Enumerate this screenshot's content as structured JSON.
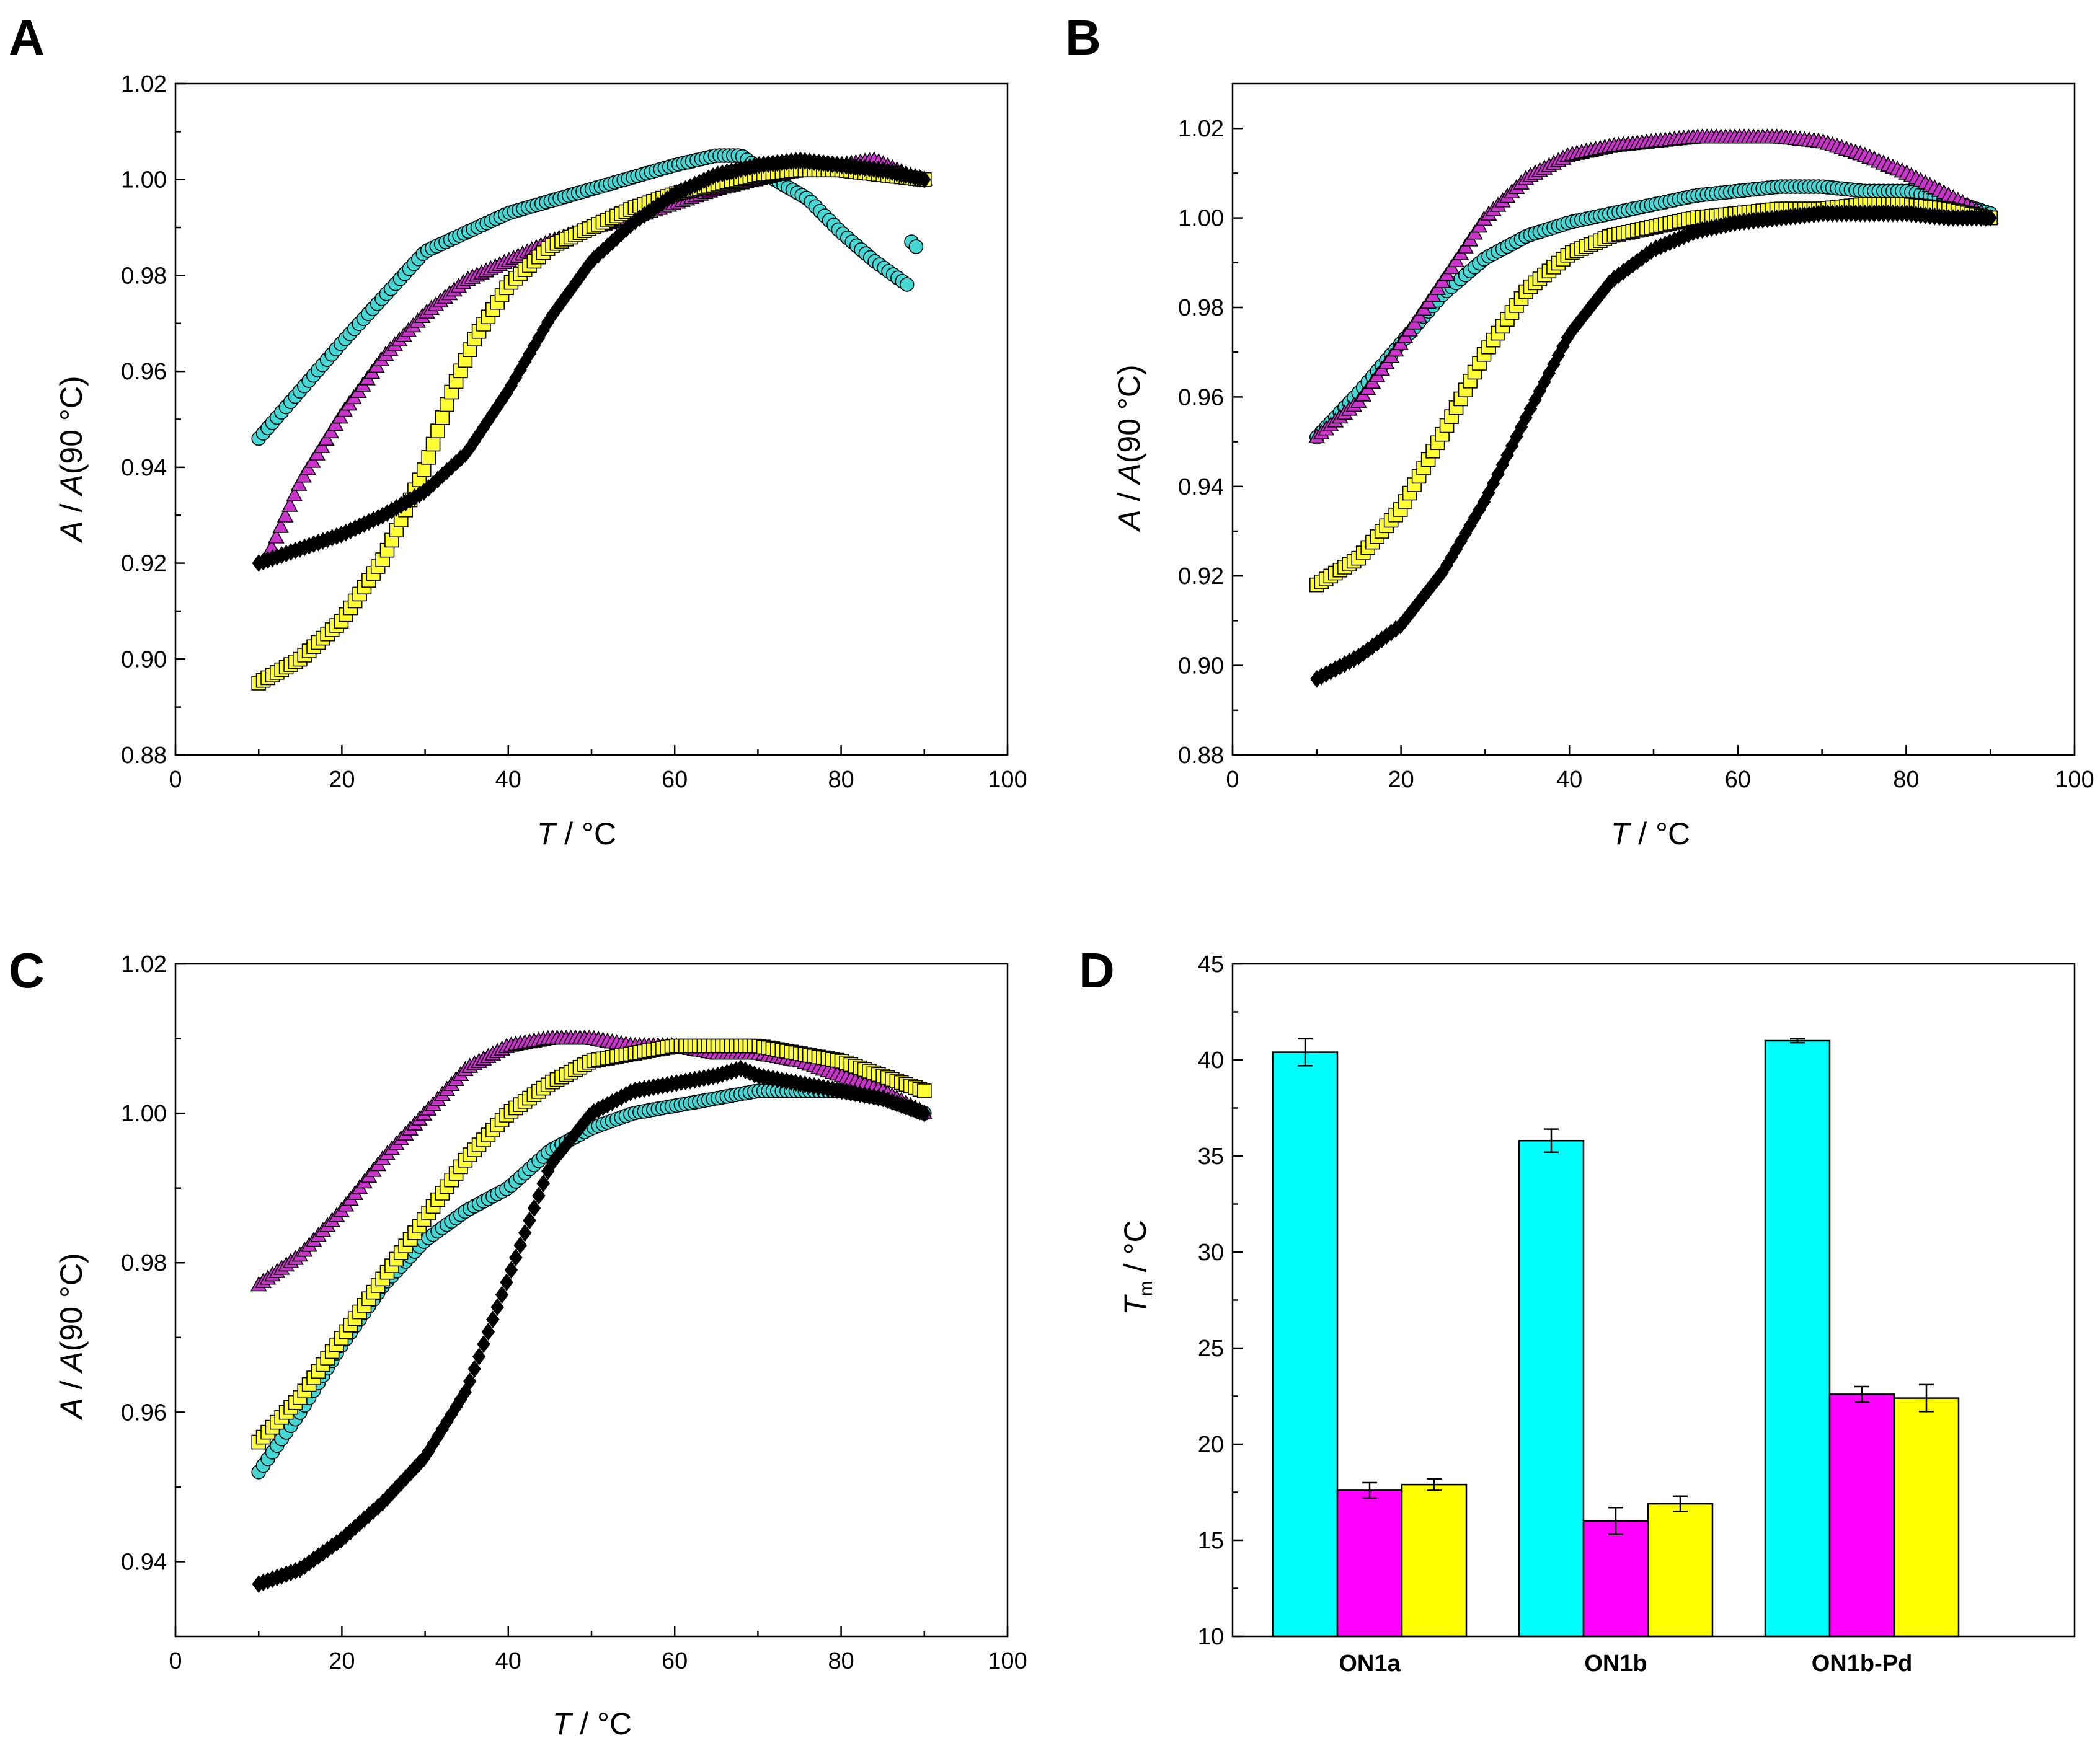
{
  "colors": {
    "cyan": "#00FFFF",
    "cyan_marker": "#44D7D4",
    "magenta": "#FF00FF",
    "magenta_marker": "#CC33CC",
    "yellow": "#FFFF00",
    "yellow_marker": "#FFFF33",
    "black": "#000000"
  },
  "chart_data": [
    {
      "id": "A",
      "panel_label": "A",
      "type": "scatter",
      "xlabel_italic": "T",
      "xlabel_rest": " / °C",
      "ylabel_italic1": "A",
      "ylabel_mid": " / ",
      "ylabel_italic2": "A",
      "ylabel_rest": "(90 °C)",
      "xlim": [
        0,
        100
      ],
      "ylim": [
        0.88,
        1.02
      ],
      "xticks": [
        0,
        20,
        40,
        60,
        80,
        100
      ],
      "xtick_labels": [
        "0",
        "20",
        "40",
        "60",
        "80",
        "100"
      ],
      "yticks": [
        0.88,
        0.9,
        0.92,
        0.94,
        0.96,
        0.98,
        1.0,
        1.02
      ],
      "ytick_labels": [
        "0.88",
        "0.90",
        "0.92",
        "0.94",
        "0.96",
        "0.98",
        "1.00",
        "1.02"
      ],
      "series": [
        {
          "name": "cyan",
          "marker": "circle",
          "color": "#44D7D4",
          "x": [
            10,
            20,
            30,
            40,
            50,
            60,
            65,
            68,
            72,
            76,
            80,
            84,
            88,
            88.5,
            89
          ],
          "y": [
            0.946,
            0.966,
            0.985,
            0.993,
            0.998,
            1.003,
            1.005,
            1.005,
            1.0,
            0.996,
            0.989,
            0.983,
            0.978,
            0.988,
            0.986
          ]
        },
        {
          "name": "magenta",
          "marker": "triangle",
          "color": "#CC33CC",
          "x": [
            11,
            15,
            20,
            25,
            30,
            35,
            40,
            45,
            50,
            55,
            60,
            65,
            70,
            75,
            80,
            84,
            88,
            90
          ],
          "y": [
            0.921,
            0.937,
            0.951,
            0.963,
            0.972,
            0.979,
            0.983,
            0.987,
            0.99,
            0.992,
            0.995,
            0.998,
            1.0,
            1.002,
            1.003,
            1.004,
            1.001,
            1.0
          ]
        },
        {
          "name": "yellow",
          "marker": "square",
          "color": "#FFFF33",
          "x": [
            10,
            15,
            20,
            25,
            30,
            33,
            36,
            40,
            45,
            50,
            55,
            60,
            65,
            70,
            75,
            80,
            85,
            90
          ],
          "y": [
            0.895,
            0.9,
            0.908,
            0.921,
            0.94,
            0.955,
            0.967,
            0.978,
            0.986,
            0.99,
            0.994,
            0.997,
            0.999,
            1.001,
            1.002,
            1.002,
            1.001,
            1.0
          ]
        },
        {
          "name": "black",
          "marker": "diamond",
          "color": "#000000",
          "x": [
            10,
            15,
            20,
            25,
            30,
            35,
            40,
            45,
            50,
            55,
            60,
            65,
            70,
            75,
            80,
            85,
            90
          ],
          "y": [
            0.92,
            0.923,
            0.926,
            0.93,
            0.935,
            0.943,
            0.956,
            0.971,
            0.983,
            0.991,
            0.997,
            1.001,
            1.003,
            1.004,
            1.003,
            1.002,
            1.0
          ]
        }
      ]
    },
    {
      "id": "B",
      "panel_label": "B",
      "type": "scatter",
      "xlabel_italic": "T",
      "xlabel_rest": " / °C",
      "ylabel_italic1": "A",
      "ylabel_mid": " / ",
      "ylabel_italic2": "A",
      "ylabel_rest": "(90 °C)",
      "xlim": [
        0,
        100
      ],
      "ylim": [
        0.88,
        1.03
      ],
      "xticks": [
        0,
        20,
        40,
        60,
        80,
        100
      ],
      "xtick_labels": [
        "0",
        "20",
        "40",
        "60",
        "80",
        "100"
      ],
      "yticks": [
        0.88,
        0.9,
        0.92,
        0.94,
        0.96,
        0.98,
        1.0,
        1.02
      ],
      "ytick_labels": [
        "0.88",
        "0.90",
        "0.92",
        "0.94",
        "0.96",
        "0.98",
        "1.00",
        "1.02"
      ],
      "series": [
        {
          "name": "cyan",
          "marker": "circle",
          "color": "#44D7D4",
          "x": [
            10,
            15,
            20,
            25,
            30,
            35,
            40,
            45,
            50,
            55,
            60,
            65,
            70,
            75,
            80,
            85,
            90
          ],
          "y": [
            0.951,
            0.961,
            0.972,
            0.983,
            0.991,
            0.996,
            0.999,
            1.001,
            1.003,
            1.005,
            1.006,
            1.007,
            1.007,
            1.006,
            1.006,
            1.004,
            1.001
          ]
        },
        {
          "name": "magenta",
          "marker": "triangle",
          "color": "#CC33CC",
          "x": [
            10,
            15,
            20,
            25,
            30,
            35,
            40,
            45,
            50,
            55,
            60,
            65,
            70,
            75,
            80,
            85,
            90
          ],
          "y": [
            0.951,
            0.959,
            0.972,
            0.986,
            1.0,
            1.009,
            1.014,
            1.016,
            1.017,
            1.018,
            1.018,
            1.018,
            1.017,
            1.014,
            1.01,
            1.005,
            1.0
          ]
        },
        {
          "name": "yellow",
          "marker": "square",
          "color": "#FFFF33",
          "x": [
            10,
            15,
            20,
            25,
            30,
            35,
            40,
            45,
            50,
            55,
            60,
            65,
            70,
            75,
            80,
            85,
            90
          ],
          "y": [
            0.918,
            0.924,
            0.935,
            0.952,
            0.97,
            0.984,
            0.992,
            0.996,
            0.998,
            1.0,
            1.001,
            1.002,
            1.002,
            1.003,
            1.003,
            1.002,
            1.0
          ]
        },
        {
          "name": "black",
          "marker": "diamond",
          "color": "#000000",
          "x": [
            10,
            15,
            20,
            25,
            30,
            35,
            40,
            45,
            50,
            55,
            60,
            65,
            70,
            75,
            80,
            85,
            90
          ],
          "y": [
            0.897,
            0.902,
            0.909,
            0.921,
            0.937,
            0.956,
            0.974,
            0.986,
            0.993,
            0.997,
            0.999,
            1.0,
            1.001,
            1.001,
            1.001,
            1.0,
            1.0
          ]
        }
      ]
    },
    {
      "id": "C",
      "panel_label": "C",
      "type": "scatter",
      "xlabel_italic": "T",
      "xlabel_rest": " / °C",
      "ylabel_italic1": "A",
      "ylabel_mid": " / ",
      "ylabel_italic2": "A",
      "ylabel_rest": "(90 °C)",
      "xlim": [
        0,
        100
      ],
      "ylim": [
        0.93,
        1.02
      ],
      "xticks": [
        0,
        20,
        40,
        60,
        80,
        100
      ],
      "xtick_labels": [
        "0",
        "20",
        "40",
        "60",
        "80",
        "100"
      ],
      "yticks": [
        0.94,
        0.96,
        0.98,
        1.0,
        1.02
      ],
      "ytick_labels": [
        "0.94",
        "0.96",
        "0.98",
        "1.00",
        "1.02"
      ],
      "series": [
        {
          "name": "cyan",
          "marker": "circle",
          "color": "#44D7D4",
          "x": [
            10,
            15,
            20,
            25,
            30,
            35,
            40,
            45,
            50,
            55,
            60,
            65,
            70,
            75,
            80,
            85,
            90
          ],
          "y": [
            0.952,
            0.96,
            0.969,
            0.977,
            0.983,
            0.987,
            0.99,
            0.995,
            0.998,
            1.0,
            1.001,
            1.002,
            1.003,
            1.003,
            1.003,
            1.002,
            1.0
          ]
        },
        {
          "name": "magenta",
          "marker": "triangle",
          "color": "#CC33CC",
          "x": [
            10,
            15,
            20,
            25,
            30,
            35,
            40,
            45,
            50,
            55,
            60,
            65,
            70,
            75,
            80,
            85,
            90
          ],
          "y": [
            0.977,
            0.981,
            0.987,
            0.994,
            1.0,
            1.006,
            1.009,
            1.01,
            1.01,
            1.009,
            1.009,
            1.008,
            1.008,
            1.007,
            1.005,
            1.003,
            1.0
          ]
        },
        {
          "name": "yellow",
          "marker": "square",
          "color": "#FFFF33",
          "x": [
            10,
            15,
            20,
            25,
            30,
            35,
            40,
            45,
            50,
            55,
            60,
            65,
            70,
            75,
            80,
            85,
            90
          ],
          "y": [
            0.956,
            0.962,
            0.97,
            0.978,
            0.986,
            0.994,
            1.0,
            1.004,
            1.007,
            1.008,
            1.009,
            1.009,
            1.009,
            1.008,
            1.007,
            1.005,
            1.003
          ]
        },
        {
          "name": "black",
          "marker": "diamond",
          "color": "#000000",
          "x": [
            10,
            15,
            20,
            25,
            30,
            35,
            40,
            45,
            50,
            55,
            60,
            65,
            68,
            70,
            75,
            80,
            85,
            90
          ],
          "y": [
            0.937,
            0.939,
            0.943,
            0.948,
            0.954,
            0.963,
            0.978,
            0.993,
            1.0,
            1.003,
            1.004,
            1.005,
            1.006,
            1.005,
            1.004,
            1.003,
            1.002,
            1.0
          ]
        }
      ]
    },
    {
      "id": "D",
      "panel_label": "D",
      "type": "bar",
      "ylabel_italic": "T",
      "ylabel_sub": "m",
      "ylabel_rest": " / °C",
      "categories": [
        "ON1a",
        "ON1b",
        "ON1b-Pd"
      ],
      "ylim": [
        10,
        45
      ],
      "yticks": [
        10,
        15,
        20,
        25,
        30,
        35,
        40,
        45
      ],
      "ytick_labels": [
        "10",
        "15",
        "20",
        "25",
        "30",
        "35",
        "40",
        "45"
      ],
      "series": [
        {
          "name": "cyan",
          "color": "#00FFFF",
          "values": [
            40.4,
            35.8,
            41.0
          ],
          "errors": [
            0.7,
            0.6,
            0.1
          ]
        },
        {
          "name": "magenta",
          "color": "#FF00FF",
          "values": [
            17.6,
            16.0,
            22.6
          ],
          "errors": [
            0.4,
            0.7,
            0.4
          ]
        },
        {
          "name": "yellow",
          "color": "#FFFF00",
          "values": [
            17.9,
            16.9,
            22.4
          ],
          "errors": [
            0.3,
            0.4,
            0.7
          ]
        }
      ]
    }
  ]
}
